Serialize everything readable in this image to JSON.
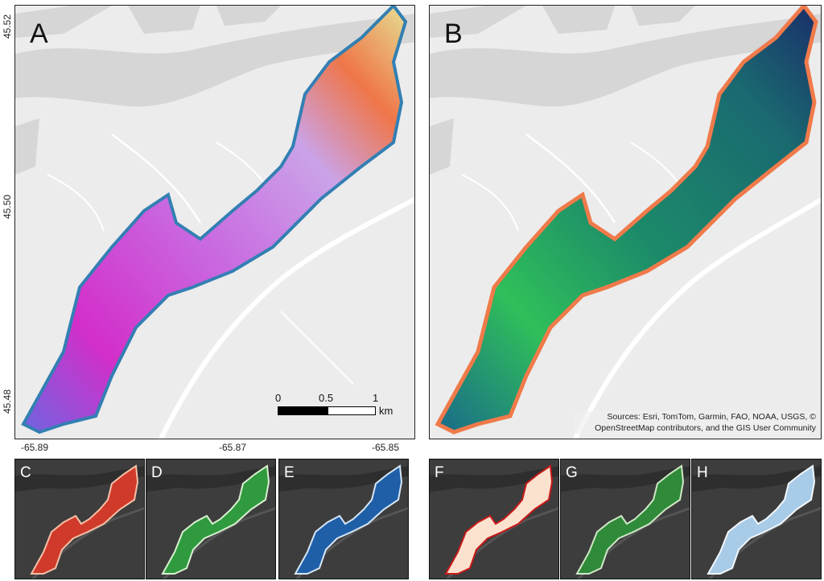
{
  "panels": {
    "a": {
      "label": "A"
    },
    "b": {
      "label": "B"
    }
  },
  "axes": {
    "lat_ticks": [
      "45.52",
      "45.50",
      "45.48"
    ],
    "lon_ticks": [
      "-65.89",
      "-65.87",
      "-65.85"
    ]
  },
  "scale_bar": {
    "ticks": [
      "0",
      "0.5",
      "1"
    ],
    "unit": "km"
  },
  "attribution": {
    "line1": "Sources: Esri, TomTom, Garmin, FAO, NOAA, USGS, ©",
    "line2": "OpenStreetMap contributors, and the GIS User Community"
  },
  "thumbnails": [
    {
      "label": "C",
      "color": "#d03a2a",
      "accent": "#f5c0a8"
    },
    {
      "label": "D",
      "color": "#2f9a3e",
      "accent": "#d9f0d0"
    },
    {
      "label": "E",
      "color": "#1f5fa8",
      "accent": "#d6e6f5"
    },
    {
      "label": "F",
      "color": "#fbe2cf",
      "accent": "#c81a1a"
    },
    {
      "label": "G",
      "color": "#2f8a3a",
      "accent": "#cfe8c6"
    },
    {
      "label": "H",
      "color": "#a8cbe8",
      "accent": "#f2f7fc"
    }
  ],
  "colors": {
    "land": "#e9e9e9",
    "water": "#d8d8d8",
    "road": "#ffffff",
    "outline_a": "#2a7ab0",
    "outline_b": "#f07a4a",
    "thumb_bg": "#3d3d3d"
  }
}
